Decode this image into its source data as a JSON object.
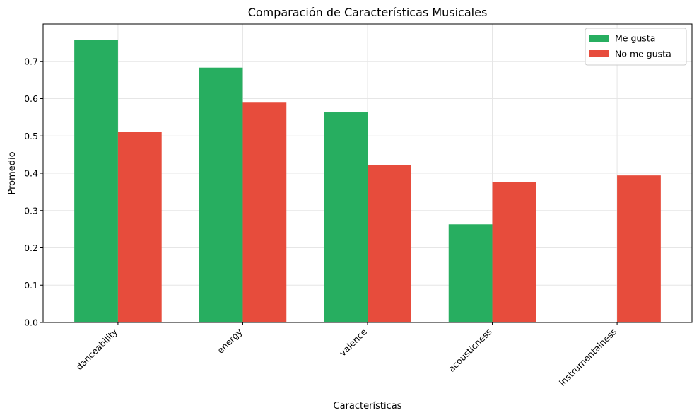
{
  "chart_data": {
    "type": "bar",
    "title": "Comparación de Características Musicales",
    "xlabel": "Características",
    "ylabel": "Promedio",
    "categories": [
      "danceability",
      "energy",
      "valence",
      "acousticness",
      "instrumentalness"
    ],
    "series": [
      {
        "name": "Me gusta",
        "color": "#27ae60",
        "values": [
          0.757,
          0.683,
          0.563,
          0.263,
          0.0
        ]
      },
      {
        "name": "No me gusta",
        "color": "#e74c3c",
        "values": [
          0.511,
          0.591,
          0.421,
          0.377,
          0.394
        ]
      }
    ],
    "ylim": [
      0,
      0.8
    ],
    "yticks": [
      0.0,
      0.1,
      0.2,
      0.3,
      0.4,
      0.5,
      0.6,
      0.7
    ],
    "ytick_labels": [
      "0.0",
      "0.1",
      "0.2",
      "0.3",
      "0.4",
      "0.5",
      "0.6",
      "0.7"
    ],
    "grid": true,
    "legend_position": "top-right",
    "xtick_rotation": 45
  }
}
